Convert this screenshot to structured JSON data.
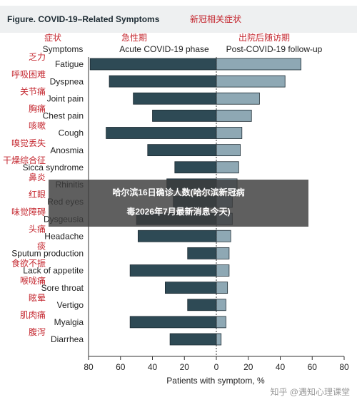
{
  "chart_data": {
    "type": "butterfly_bar",
    "title": "Figure. COVID-19–Related Symptoms",
    "title_cn": "新冠相关症状",
    "symptoms_header_cn": "症状",
    "symptoms_header": "Symptoms",
    "categories": [
      "Fatigue",
      "Dyspnea",
      "Joint pain",
      "Chest pain",
      "Cough",
      "Anosmia",
      "Sicca syndrome",
      "Rhinitis",
      "Red eyes",
      "Dysgeusia",
      "Headache",
      "Sputum production",
      "Lack of appetite",
      "Sore throat",
      "Vertigo",
      "Myalgia",
      "Diarrhea"
    ],
    "categories_cn": [
      "乏力",
      "呼吸困难",
      "关节痛",
      "胸痛",
      "咳嗽",
      "嗅觉丢失",
      "干燥综合征",
      "鼻炎",
      "红眼",
      "味觉障碍",
      "头痛",
      "痰",
      "食欲不振",
      "喉咙痛",
      "眩晕",
      "肌肉痛",
      "腹泻"
    ],
    "series": [
      {
        "name": "Acute COVID-19 phase",
        "name_cn": "急性期",
        "color": "#2e4a55",
        "direction": "left",
        "values": [
          79,
          67,
          52,
          40,
          69,
          43,
          26,
          31,
          27,
          50,
          49,
          18,
          54,
          32,
          18,
          54,
          29
        ]
      },
      {
        "name": "Post-COVID-19 follow-up",
        "name_cn": "出院后随访期",
        "color": "#8ea8b4",
        "direction": "right",
        "values": [
          53,
          43,
          27,
          22,
          16,
          15,
          14,
          13,
          10,
          10,
          9,
          8,
          8,
          7,
          6,
          6,
          3
        ]
      }
    ],
    "xlim": [
      -80,
      80
    ],
    "xticks": [
      {
        "value": -80,
        "label": "80"
      },
      {
        "value": -60,
        "label": "60"
      },
      {
        "value": -40,
        "label": "40"
      },
      {
        "value": -20,
        "label": "20"
      },
      0,
      20,
      40,
      60,
      80
    ],
    "xlabel": "Patients with symptom, %"
  },
  "overlay": {
    "line1": "哈尔滨16日确诊人数(哈尔滨新冠病",
    "line2": "毒2026年7月最新消息今天)"
  },
  "watermark": "知乎 @遇知心理课堂"
}
